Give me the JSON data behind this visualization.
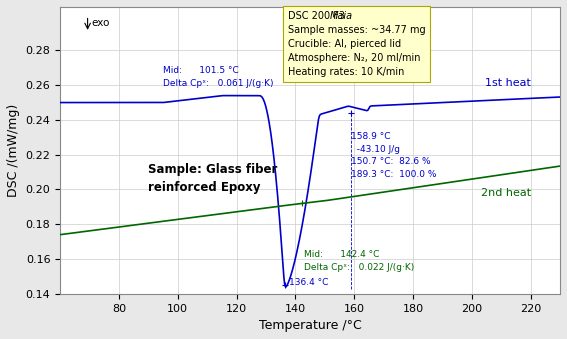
{
  "title": "",
  "xlabel": "Temperature /°C",
  "ylabel": "DSC /(mW/mg)",
  "xlim": [
    60,
    230
  ],
  "ylim": [
    0.14,
    0.305
  ],
  "yticks": [
    0.14,
    0.16,
    0.18,
    0.2,
    0.22,
    0.24,
    0.26,
    0.28
  ],
  "xticks": [
    80,
    100,
    120,
    140,
    160,
    180,
    200,
    220
  ],
  "bg_color": "#f0f0f0",
  "plot_bg_color": "#ffffff",
  "line1_color": "#0000cc",
  "line2_color": "#006600",
  "annotation_color_blue": "#0000cc",
  "annotation_color_green": "#006600",
  "box_color": "#ffffcc",
  "info_text": "DSC 200 F3 Maia\nSample masses: ~34.77 mg\nCrucible: Al, pierced lid\nAtmosphere: N₂, 20 ml/min\nHeating rates: 10 K/min",
  "sample_text": "Sample: Glass fiber\nreinforced Epoxy",
  "label_1st": "1st heat",
  "label_2nd": "2nd heat",
  "mid1_text": "Mid:      101.5 °C\nDelta Cpˣ:   0.061 J/(g·K)",
  "peak_text": "158.9 °C\n  -43.10 J/g\n150.7 °C:  82.6 %\n189.3 °C:  100.0 %",
  "min_temp_text": "136.4 °C",
  "mid2_text": "Mid:      142.4 °C\nDelta Cpˣ:   0.022 J/(g·K)"
}
